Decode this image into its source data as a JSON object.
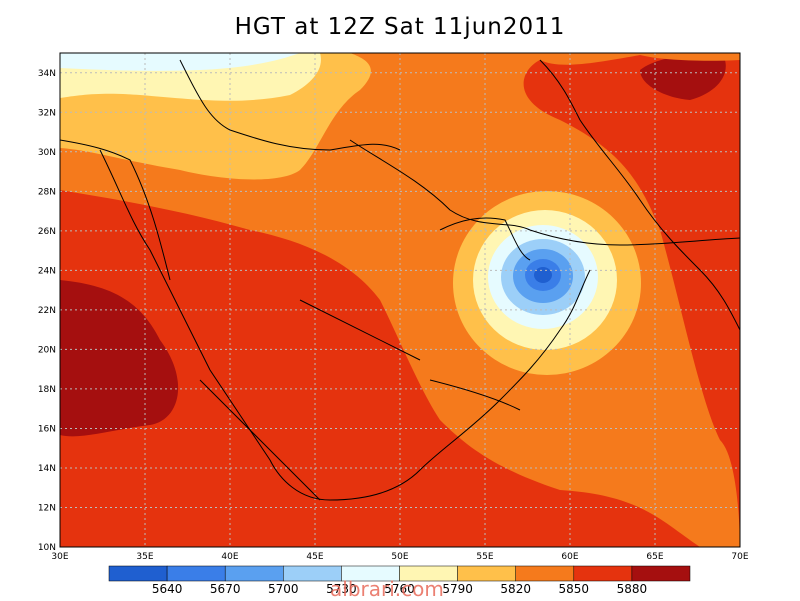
{
  "title": "HGT at 12Z Sat 11jun2011",
  "watermark": "albrari.com",
  "axes": {
    "lon_labels": [
      "30E",
      "35E",
      "40E",
      "45E",
      "50E",
      "55E",
      "60E",
      "65E",
      "70E"
    ],
    "lat_labels": [
      "10N",
      "12N",
      "14N",
      "16N",
      "18N",
      "20N",
      "22N",
      "24N",
      "26N",
      "28N",
      "30N",
      "32N",
      "34N"
    ],
    "lon_range": [
      30,
      70
    ],
    "lat_range": [
      10,
      35
    ],
    "grid": true
  },
  "colorbar": {
    "labels": [
      "5640",
      "5670",
      "5700",
      "5730",
      "5760",
      "5790",
      "5820",
      "5850",
      "5880"
    ],
    "colors": [
      "#1f5fd0",
      "#3a7ee8",
      "#5aa0f0",
      "#9ccff8",
      "#e6fbff",
      "#fff6b3",
      "#ffc04a",
      "#f57a1c",
      "#e5330e",
      "#a50f0f"
    ]
  },
  "legend_position": "bottom"
}
